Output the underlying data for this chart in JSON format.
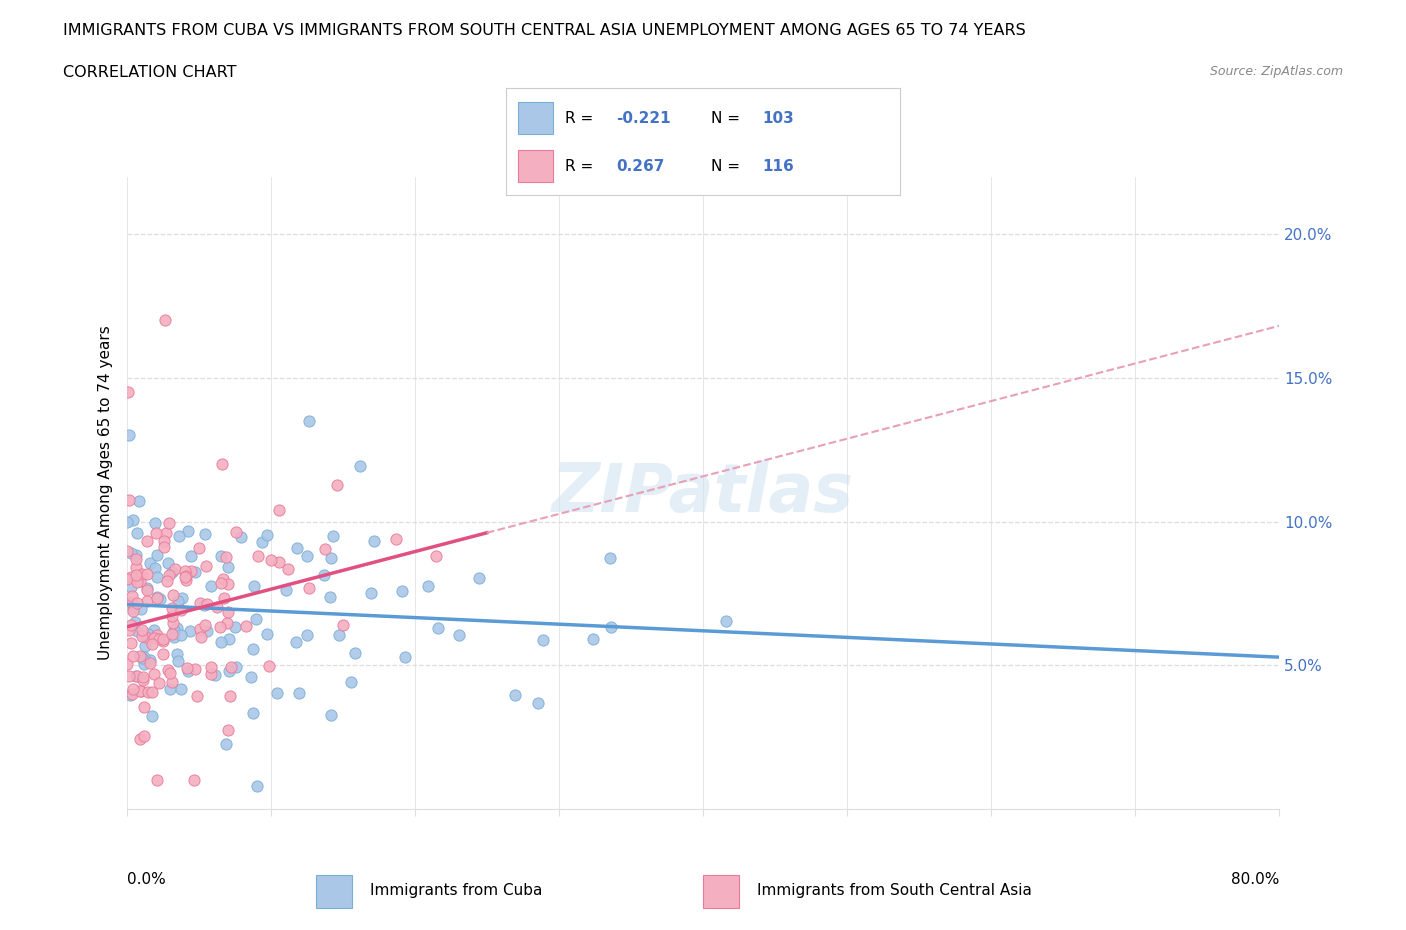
{
  "title_line1": "IMMIGRANTS FROM CUBA VS IMMIGRANTS FROM SOUTH CENTRAL ASIA UNEMPLOYMENT AMONG AGES 65 TO 74 YEARS",
  "title_line2": "CORRELATION CHART",
  "source": "Source: ZipAtlas.com",
  "ylabel": "Unemployment Among Ages 65 to 74 years",
  "legend1_label": "Immigrants from Cuba",
  "legend2_label": "Immigrants from South Central Asia",
  "r1": -0.221,
  "n1": 103,
  "r2": 0.267,
  "n2": 116,
  "color_cuba": "#aac7e8",
  "color_sca": "#f4afc0",
  "edge_cuba": "#7aafd4",
  "edge_sca": "#e87a9a",
  "trend_cuba": "#5b9bd5",
  "trend_sca": "#e05080",
  "trend_sca_dash": "#e8a0b8",
  "watermark": "ZIPatlas",
  "xmin": 0.0,
  "xmax": 80.0,
  "ymin": 0.0,
  "ymax": 22.0,
  "ytick_vals": [
    5,
    10,
    15,
    20
  ],
  "xtick_vals": [
    0,
    10,
    20,
    30,
    40,
    50,
    60,
    70,
    80
  ],
  "seed_cuba": 42,
  "seed_sca": 99,
  "background": "#ffffff",
  "grid_color": "#dddddd"
}
